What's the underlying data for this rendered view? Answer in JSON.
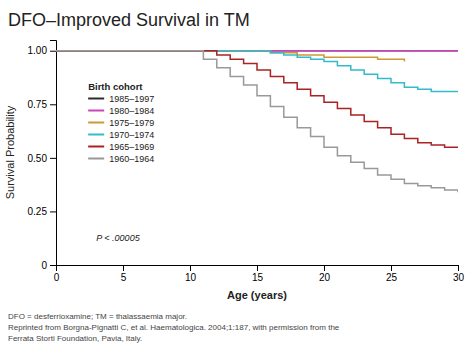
{
  "chart_data": {
    "type": "step",
    "title": "DFO–Improved Survival in TM",
    "x_label": "Age (years)",
    "y_label": "Survival Probability",
    "xlim": [
      0,
      30
    ],
    "xticks": [
      0,
      5,
      10,
      15,
      20,
      25,
      30
    ],
    "ylim": [
      0,
      1.05
    ],
    "yticks": [
      0,
      0.25,
      {
        "value": 0.5,
        "label": "0.50"
      },
      0.75,
      {
        "value": 1.0,
        "label": "1.00"
      }
    ],
    "grid": false,
    "legend": "upper-left",
    "legend_title": "Birth cohort",
    "annotations": [
      "P < .00005"
    ],
    "footnotes": [
      "DFO = desferrioxamine; TM = thalassaemia major.",
      "Reprinted from Borgna-Pignatti C, et al. Haematologica. 2004;1:187, with permission from the",
      "Ferrata Storti Foundation, Pavia, Italy."
    ],
    "series": [
      {
        "name": "1985–1997",
        "color": "#2b2b2b",
        "x": [
          0,
          30
        ],
        "values": [
          1.0,
          1.0
        ]
      },
      {
        "name": "1980–1984",
        "color": "#cc44bb",
        "x": [
          0,
          12,
          13,
          14,
          15,
          30
        ],
        "values": [
          1.0,
          1.0,
          1.0,
          1.0,
          1.0,
          1.0
        ]
      },
      {
        "name": "1975–1979",
        "color": "#cc9933",
        "x": [
          0,
          15,
          16,
          17,
          18,
          19,
          20,
          21,
          22,
          23,
          24,
          25,
          26
        ],
        "values": [
          1.0,
          1.0,
          0.99,
          0.99,
          0.98,
          0.98,
          0.97,
          0.97,
          0.97,
          0.97,
          0.96,
          0.96,
          0.95
        ]
      },
      {
        "name": "1970–1974",
        "color": "#33bbcc",
        "x": [
          0,
          15,
          16,
          17,
          18,
          19,
          20,
          21,
          22,
          23,
          24,
          25,
          26,
          27,
          28,
          29,
          30
        ],
        "values": [
          1.0,
          1.0,
          0.99,
          0.98,
          0.97,
          0.96,
          0.95,
          0.93,
          0.91,
          0.89,
          0.87,
          0.85,
          0.83,
          0.82,
          0.81,
          0.81,
          0.81
        ]
      },
      {
        "name": "1965–1969",
        "color": "#aa2222",
        "x": [
          0,
          11,
          12,
          13,
          14,
          15,
          16,
          17,
          18,
          19,
          20,
          21,
          22,
          23,
          24,
          25,
          26,
          27,
          28,
          29,
          30
        ],
        "values": [
          1.0,
          1.0,
          0.98,
          0.96,
          0.94,
          0.91,
          0.88,
          0.85,
          0.82,
          0.79,
          0.76,
          0.73,
          0.7,
          0.67,
          0.64,
          0.61,
          0.59,
          0.57,
          0.56,
          0.55,
          0.55
        ]
      },
      {
        "name": "1960–1964",
        "color": "#999999",
        "x": [
          0,
          10,
          11,
          12,
          13,
          14,
          15,
          16,
          17,
          18,
          19,
          20,
          21,
          22,
          23,
          24,
          25,
          26,
          27,
          28,
          29,
          30
        ],
        "values": [
          1.0,
          1.0,
          0.96,
          0.92,
          0.88,
          0.84,
          0.79,
          0.74,
          0.69,
          0.64,
          0.6,
          0.55,
          0.51,
          0.48,
          0.45,
          0.42,
          0.4,
          0.38,
          0.37,
          0.36,
          0.35,
          0.34
        ]
      }
    ]
  }
}
